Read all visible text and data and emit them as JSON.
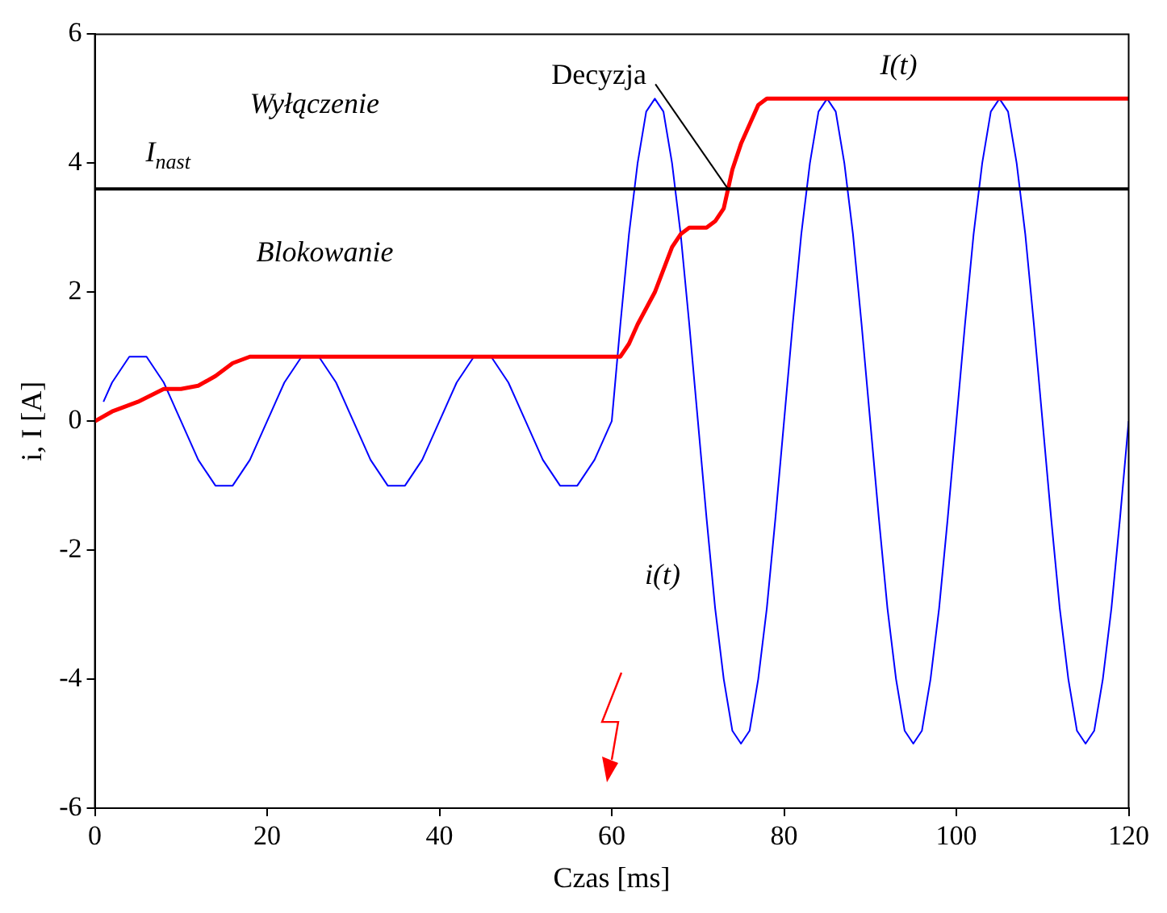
{
  "chart_data": {
    "type": "line",
    "xlabel": "Czas [ms]",
    "ylabel": "i, I [A]",
    "xlim": [
      0,
      120
    ],
    "xticks": [
      0,
      20,
      40,
      60,
      80,
      100,
      120
    ],
    "ylim": [
      -6,
      6
    ],
    "yticks": [
      -6,
      -4,
      -2,
      0,
      2,
      4,
      6
    ],
    "grid": false,
    "legend": false,
    "marker": "none",
    "series": [
      {
        "name": "i(t)",
        "color": "#0000ff",
        "x": [
          1,
          2,
          3,
          4,
          5,
          6,
          7,
          8,
          9,
          10,
          11,
          12,
          13,
          14,
          15,
          16,
          17,
          18,
          19,
          20,
          21,
          22,
          23,
          24,
          25,
          26,
          27,
          28,
          29,
          30,
          31,
          32,
          33,
          34,
          35,
          36,
          37,
          38,
          39,
          40,
          41,
          42,
          43,
          44,
          45,
          46,
          47,
          48,
          49,
          50,
          51,
          52,
          53,
          54,
          55,
          56,
          57,
          58,
          59,
          60,
          61,
          62,
          63,
          64,
          65,
          66,
          67,
          68,
          69,
          70,
          71,
          72,
          73,
          74,
          75,
          76,
          77,
          78,
          79,
          80,
          81,
          82,
          83,
          84,
          85,
          86,
          87,
          88,
          89,
          90,
          91,
          92,
          93,
          94,
          95,
          96,
          97,
          98,
          99,
          100,
          101,
          102,
          103,
          104,
          105,
          106,
          107,
          108,
          109,
          110,
          111,
          112,
          113,
          114,
          115,
          116,
          117,
          118,
          119,
          120
        ],
        "values": [
          0.3,
          0.6,
          0.8,
          1,
          1,
          1,
          0.8,
          0.6,
          0.3,
          0,
          -0.3,
          -0.6,
          -0.8,
          -1,
          -1,
          -1,
          -0.8,
          -0.6,
          -0.3,
          0,
          0.3,
          0.6,
          0.8,
          1,
          1,
          1,
          0.8,
          0.6,
          0.3,
          0,
          -0.3,
          -0.6,
          -0.8,
          -1,
          -1,
          -1,
          -0.8,
          -0.6,
          -0.3,
          0,
          0.3,
          0.6,
          0.8,
          1,
          1,
          1,
          0.8,
          0.6,
          0.3,
          0,
          -0.3,
          -0.6,
          -0.8,
          -1,
          -1,
          -1,
          -0.8,
          -0.6,
          -0.3,
          0,
          1.5,
          2.9,
          4,
          4.8,
          5,
          4.8,
          4,
          2.9,
          1.5,
          0,
          -1.5,
          -2.9,
          -4,
          -4.8,
          -5,
          -4.8,
          -4,
          -2.9,
          -1.5,
          0,
          1.5,
          2.9,
          4,
          4.8,
          5,
          4.8,
          4,
          2.9,
          1.5,
          0,
          -1.5,
          -2.9,
          -4,
          -4.8,
          -5,
          -4.8,
          -4,
          -2.9,
          -1.5,
          0,
          1.5,
          2.9,
          4,
          4.8,
          5,
          4.8,
          4,
          2.9,
          1.5,
          0,
          -1.5,
          -2.9,
          -4,
          -4.8,
          -5,
          -4.8,
          -4,
          -2.9,
          -1.5,
          0
        ]
      },
      {
        "name": "I(t)",
        "color": "#ff0000",
        "x": [
          0,
          2,
          5,
          8,
          10,
          12,
          14,
          16,
          18,
          61,
          62,
          63,
          65,
          67,
          68,
          69,
          71,
          72,
          73,
          74,
          75,
          76,
          77,
          78,
          79,
          120
        ],
        "values": [
          0,
          0.15,
          0.3,
          0.5,
          0.5,
          0.55,
          0.7,
          0.9,
          1,
          1,
          1.2,
          1.5,
          2,
          2.7,
          2.9,
          3,
          3,
          3.1,
          3.3,
          3.9,
          4.3,
          4.6,
          4.9,
          5,
          5,
          5
        ]
      }
    ],
    "ref_lines": [
      {
        "axis": "y",
        "value": 3.6,
        "color": "#000000"
      }
    ],
    "annotations": [
      "Wyłączenie",
      "I$_{nast}$",
      "Blokowanie",
      {
        "text": "Decyzja",
        "x": 73.5,
        "y": 3.6
      }
    ]
  }
}
